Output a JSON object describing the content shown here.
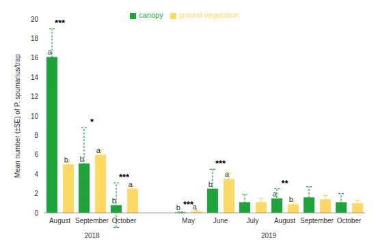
{
  "chart_data": {
    "type": "bar",
    "y_label": "Mean number (±SE) of P. spumarius/trap",
    "categories": [
      "August",
      "September",
      "October",
      null,
      "May",
      "June",
      "July",
      "August",
      "September",
      "October"
    ],
    "groups": [
      {
        "label": "2018",
        "from": 0,
        "to": 2
      },
      {
        "label": "2019",
        "from": 4,
        "to": 9
      }
    ],
    "series": [
      {
        "name": "canopy",
        "color": "#1fa33b",
        "values": [
          16.1,
          5.1,
          0.8,
          null,
          0.05,
          2.5,
          1.1,
          1.5,
          1.6,
          1.1
        ],
        "errors": [
          2.9,
          3.7,
          2.3,
          null,
          0.05,
          2.0,
          0.8,
          1.0,
          1.1,
          0.9
        ],
        "letters": [
          "a",
          "b",
          "b",
          null,
          "b",
          "b",
          null,
          "a",
          null,
          null
        ],
        "line_style": "dashed"
      },
      {
        "name": "ground vegetation",
        "color": "#ffd966",
        "values": [
          5.0,
          6.0,
          2.5,
          null,
          0.15,
          3.5,
          1.1,
          0.9,
          1.4,
          1.0
        ],
        "errors": [
          0.3,
          0.5,
          0.3,
          null,
          0.1,
          0.6,
          0.4,
          0.3,
          0.4,
          0.3
        ],
        "letters": [
          "b",
          "a",
          "a",
          null,
          "a",
          "a",
          null,
          "b",
          null,
          null
        ],
        "line_style": "solid"
      }
    ],
    "significance": [
      "***",
      "*",
      "***",
      null,
      "***",
      "***",
      null,
      "**",
      null,
      null
    ],
    "ylim": [
      0,
      20
    ],
    "yticks": [
      0,
      2,
      4,
      6,
      8,
      10,
      12,
      14,
      16,
      18,
      20
    ],
    "grid": false,
    "legend": "top"
  }
}
